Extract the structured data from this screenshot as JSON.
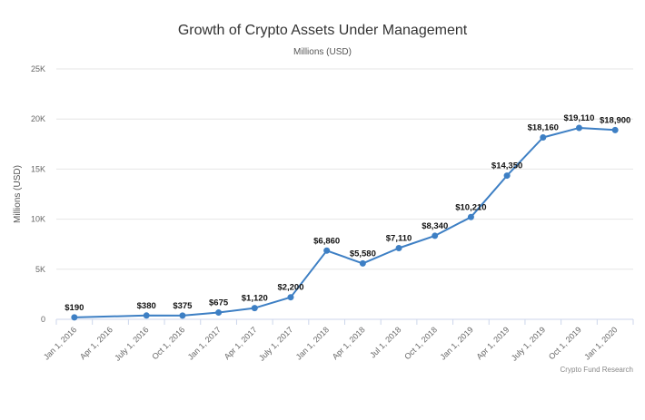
{
  "chart_data": {
    "type": "line",
    "title": "Growth of Crypto Assets Under Management",
    "subtitle": "Millions (USD)",
    "ylabel": "Millions (USD)",
    "xlabel": "",
    "credits": "Crypto Fund Research",
    "ylim": [
      0,
      25000
    ],
    "y_ticks": [
      0,
      5000,
      10000,
      15000,
      20000,
      25000
    ],
    "y_tick_labels": [
      "0",
      "5K",
      "10K",
      "15K",
      "20K",
      "25K"
    ],
    "grid": true,
    "legend": "none",
    "line_color": "#3d7fc4",
    "categories": [
      "Jan 1, 2016",
      "Apr 1, 2016",
      "July 1, 2016",
      "Oct 1, 2016",
      "Jan 1, 2017",
      "Apr 1, 2017",
      "July 1, 2017",
      "Jan 1, 2018",
      "Apr 1, 2018",
      "Jul 1, 2018",
      "Oct 1, 2018",
      "Jan 1, 2019",
      "Apr 1, 2019",
      "July 1, 2019",
      "Oct 1, 2019",
      "Jan 1, 2020"
    ],
    "series": [
      {
        "values": [
          190,
          null,
          380,
          375,
          675,
          1120,
          2200,
          6860,
          5580,
          7110,
          8340,
          10210,
          14350,
          18160,
          19110,
          18900
        ],
        "labels": [
          "$190",
          "",
          "$380",
          "$375",
          "$675",
          "$1,120",
          "$2,200",
          "$6,860",
          "$5,580",
          "$7,110",
          "$8,340",
          "$10,210",
          "$14,350",
          "$18,160",
          "$19,110",
          "$18,900"
        ]
      }
    ]
  }
}
